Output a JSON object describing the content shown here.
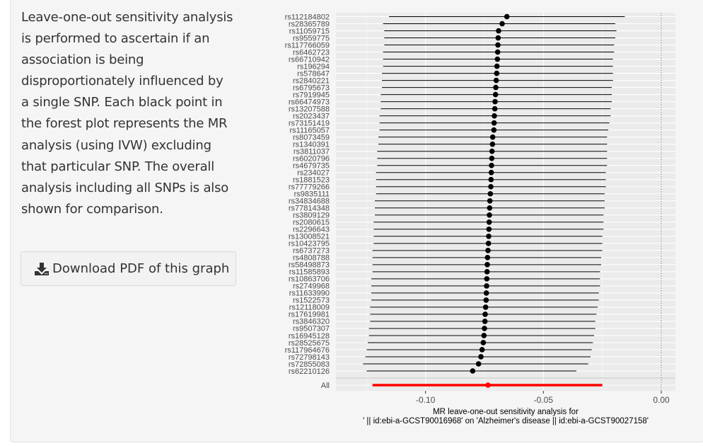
{
  "description": {
    "text": "Leave-one-out sensitivity analysis is performed to ascertain if an association is being disproportionately influenced by a single SNP. Each black point in the forest plot represents the MR analysis (using IVW) excluding that particular SNP. The overall analysis including all SNPs is also shown for comparison."
  },
  "download_button": {
    "label": "Download PDF of this graph",
    "icon": "download-icon"
  },
  "chart_data": {
    "type": "forest",
    "xlabel_line1": "MR leave-one-out sensitivity analysis for",
    "xlabel_line2": "' || id:ebi-a-GCST90016968' on 'Alzheimer's disease || id:ebi-a-GCST90027158'",
    "xlim": [
      -0.138,
      0.006
    ],
    "xticks": [
      -0.1,
      -0.05,
      0.0
    ],
    "xtick_labels": [
      "-0.10",
      "-0.05",
      "0.00"
    ],
    "reference_line": 0,
    "colors": {
      "points": "#000000",
      "overall": "#ff0000",
      "panel_bg": "#ebebeb",
      "grid": "#ffffff"
    },
    "snps": [
      {
        "label": "rs112184802",
        "b": -0.0655,
        "lo": -0.1155,
        "hi": -0.0155
      },
      {
        "label": "rs28365789",
        "b": -0.0675,
        "lo": -0.118,
        "hi": -0.0195
      },
      {
        "label": "rs11059715",
        "b": -0.069,
        "lo": -0.1175,
        "hi": -0.019
      },
      {
        "label": "rs9559775",
        "b": -0.0692,
        "lo": -0.1175,
        "hi": -0.0195
      },
      {
        "label": "rs117766059",
        "b": -0.0693,
        "lo": -0.1175,
        "hi": -0.02
      },
      {
        "label": "rs6462723",
        "b": -0.0694,
        "lo": -0.118,
        "hi": -0.02
      },
      {
        "label": "rs66710942",
        "b": -0.0695,
        "lo": -0.118,
        "hi": -0.0205
      },
      {
        "label": "rs196294",
        "b": -0.0697,
        "lo": -0.118,
        "hi": -0.0205
      },
      {
        "label": "rs578647",
        "b": -0.0698,
        "lo": -0.1185,
        "hi": -0.0205
      },
      {
        "label": "rs2840221",
        "b": -0.07,
        "lo": -0.1185,
        "hi": -0.0205
      },
      {
        "label": "rs6795673",
        "b": -0.0702,
        "lo": -0.1185,
        "hi": -0.021
      },
      {
        "label": "rs7919945",
        "b": -0.0703,
        "lo": -0.119,
        "hi": -0.021
      },
      {
        "label": "rs66474973",
        "b": -0.0705,
        "lo": -0.119,
        "hi": -0.021
      },
      {
        "label": "rs13207588",
        "b": -0.0706,
        "lo": -0.119,
        "hi": -0.0215
      },
      {
        "label": "rs2023437",
        "b": -0.0708,
        "lo": -0.1195,
        "hi": -0.0215
      },
      {
        "label": "rs73151419",
        "b": -0.0709,
        "lo": -0.1195,
        "hi": -0.022
      },
      {
        "label": "rs11165057",
        "b": -0.071,
        "lo": -0.1195,
        "hi": -0.0225
      },
      {
        "label": "rs8073459",
        "b": -0.0715,
        "lo": -0.12,
        "hi": -0.023
      },
      {
        "label": "rs1340391",
        "b": -0.0716,
        "lo": -0.12,
        "hi": -0.023
      },
      {
        "label": "rs3811037",
        "b": -0.0718,
        "lo": -0.1205,
        "hi": -0.023
      },
      {
        "label": "rs6020796",
        "b": -0.0719,
        "lo": -0.1205,
        "hi": -0.023
      },
      {
        "label": "rs4679735",
        "b": -0.072,
        "lo": -0.1205,
        "hi": -0.023
      },
      {
        "label": "rs234027",
        "b": -0.0721,
        "lo": -0.121,
        "hi": -0.0235
      },
      {
        "label": "rs1881523",
        "b": -0.0722,
        "lo": -0.121,
        "hi": -0.0235
      },
      {
        "label": "rs77779266",
        "b": -0.0723,
        "lo": -0.121,
        "hi": -0.0235
      },
      {
        "label": "rs9835111",
        "b": -0.0725,
        "lo": -0.121,
        "hi": -0.024
      },
      {
        "label": "rs34834688",
        "b": -0.0727,
        "lo": -0.1215,
        "hi": -0.024
      },
      {
        "label": "rs77814348",
        "b": -0.0728,
        "lo": -0.1215,
        "hi": -0.024
      },
      {
        "label": "rs3809129",
        "b": -0.0729,
        "lo": -0.1215,
        "hi": -0.0245
      },
      {
        "label": "rs2080615",
        "b": -0.073,
        "lo": -0.122,
        "hi": -0.0245
      },
      {
        "label": "rs2296643",
        "b": -0.0731,
        "lo": -0.122,
        "hi": -0.0245
      },
      {
        "label": "rs13008521",
        "b": -0.0732,
        "lo": -0.122,
        "hi": -0.025
      },
      {
        "label": "rs10423795",
        "b": -0.0733,
        "lo": -0.122,
        "hi": -0.025
      },
      {
        "label": "rs6737273",
        "b": -0.0735,
        "lo": -0.1225,
        "hi": -0.025
      },
      {
        "label": "rs4808788",
        "b": -0.0737,
        "lo": -0.1225,
        "hi": -0.0255
      },
      {
        "label": "rs58498873",
        "b": -0.0738,
        "lo": -0.1225,
        "hi": -0.0255
      },
      {
        "label": "rs11585893",
        "b": -0.0739,
        "lo": -0.1225,
        "hi": -0.026
      },
      {
        "label": "rs10863706",
        "b": -0.074,
        "lo": -0.123,
        "hi": -0.026
      },
      {
        "label": "rs2749968",
        "b": -0.0741,
        "lo": -0.123,
        "hi": -0.026
      },
      {
        "label": "rs11633990",
        "b": -0.0742,
        "lo": -0.123,
        "hi": -0.0265
      },
      {
        "label": "rs1522573",
        "b": -0.0743,
        "lo": -0.123,
        "hi": -0.0265
      },
      {
        "label": "rs12118009",
        "b": -0.0745,
        "lo": -0.1235,
        "hi": -0.027
      },
      {
        "label": "rs17619981",
        "b": -0.0747,
        "lo": -0.1235,
        "hi": -0.0275
      },
      {
        "label": "rs3846320",
        "b": -0.0748,
        "lo": -0.1235,
        "hi": -0.028
      },
      {
        "label": "rs9507307",
        "b": -0.075,
        "lo": -0.124,
        "hi": -0.028
      },
      {
        "label": "rs16945128",
        "b": -0.0752,
        "lo": -0.124,
        "hi": -0.0285
      },
      {
        "label": "rs28525675",
        "b": -0.0755,
        "lo": -0.1245,
        "hi": -0.029
      },
      {
        "label": "rs117964676",
        "b": -0.076,
        "lo": -0.125,
        "hi": -0.0295
      },
      {
        "label": "rs72798143",
        "b": -0.0765,
        "lo": -0.1255,
        "hi": -0.03
      },
      {
        "label": "rs72855083",
        "b": -0.0775,
        "lo": -0.1265,
        "hi": -0.031
      },
      {
        "label": "rs62210126",
        "b": -0.08,
        "lo": -0.125,
        "hi": -0.036
      }
    ],
    "overall": {
      "label": "All",
      "b": -0.0735,
      "lo": -0.1225,
      "hi": -0.025
    }
  }
}
